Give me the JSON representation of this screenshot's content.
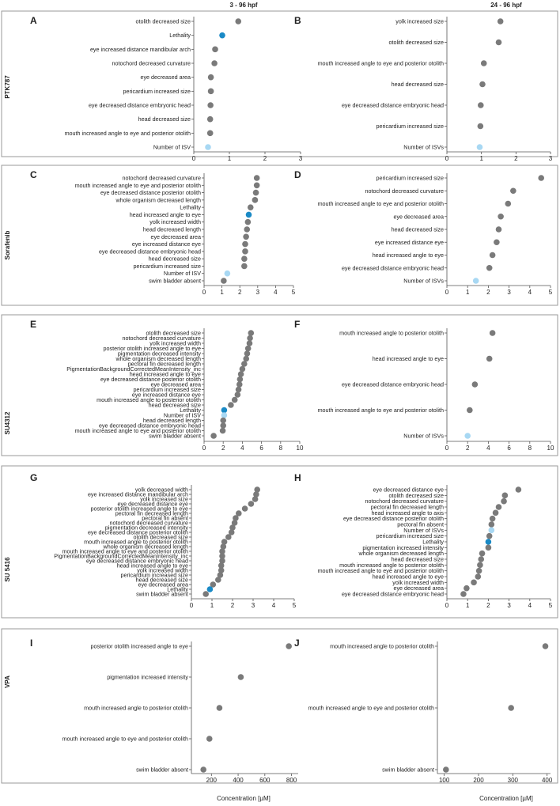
{
  "column_headers": [
    "3 - 96 hpf",
    "24 - 96 hpf"
  ],
  "x_axis_label": "Concentration [µM]",
  "colors": {
    "default": "#7a7a7a",
    "lethality": "#1a8ac6",
    "isv": "#a8d8f3",
    "frame": "#999999",
    "axis": "#555555"
  },
  "chart_data": [
    {
      "type": "scatter",
      "panel": "A",
      "row_label": "PTK787",
      "xlim": [
        0,
        3
      ],
      "ticks": [
        0,
        1,
        2,
        3
      ],
      "categories": [
        "otolith decreased size",
        "Lethality",
        "eye increased distance mandibular arch",
        "notochord decreased curvature",
        "eye decreased area",
        "pericardium increased size",
        "eye decreased distance embryonic head",
        "head decreased size",
        "mouth increased angle to eye and posterior otolith",
        "Number of ISV"
      ],
      "values": [
        1.25,
        0.8,
        0.6,
        0.58,
        0.48,
        0.48,
        0.47,
        0.46,
        0.46,
        0.4
      ],
      "kinds": [
        "default",
        "lethality",
        "default",
        "default",
        "default",
        "default",
        "default",
        "default",
        "default",
        "isv"
      ]
    },
    {
      "type": "scatter",
      "panel": "B",
      "xlim": [
        0,
        3
      ],
      "ticks": [
        0,
        1,
        2,
        3
      ],
      "categories": [
        "yolk increased size",
        "otolith decreased size",
        "mouth increased angle to eye and posterior otolith",
        "head decreased size",
        "eye decreased distance embryonic head",
        "pericardium increased size",
        "Number of ISVs"
      ],
      "values": [
        1.55,
        1.5,
        1.07,
        1.03,
        0.98,
        0.97,
        0.95
      ],
      "kinds": [
        "default",
        "default",
        "default",
        "default",
        "default",
        "default",
        "isv"
      ]
    },
    {
      "type": "scatter",
      "panel": "C",
      "row_label": "Sorafenib",
      "xlim": [
        0,
        5
      ],
      "ticks": [
        0,
        1,
        2,
        3,
        4,
        5
      ],
      "categories": [
        "notochord decreased curvature",
        "mouth increased angle to eye and posterior otolith",
        "eye decreased distance posterior otolith",
        "whole organism decreased length",
        "Lethality",
        "head increased angle to eye",
        "yolk increased width",
        "head decreased length",
        "eye decreased area",
        "eye increased distance eye",
        "eye decreased distance embryonic head",
        "head decreased size",
        "pericardium increased size",
        "Number of ISV",
        "swim bladder absent"
      ],
      "values": [
        2.95,
        2.95,
        2.9,
        2.85,
        2.6,
        2.5,
        2.45,
        2.4,
        2.35,
        2.3,
        2.3,
        2.25,
        2.25,
        1.3,
        1.1
      ],
      "kinds": [
        "default",
        "default",
        "default",
        "default",
        "default",
        "lethality",
        "default",
        "default",
        "default",
        "default",
        "default",
        "default",
        "default",
        "isv",
        "default"
      ]
    },
    {
      "type": "scatter",
      "panel": "D",
      "xlim": [
        0,
        5
      ],
      "ticks": [
        0,
        1,
        2,
        3,
        4,
        5
      ],
      "categories": [
        "pericardium increased size",
        "notochord decreased curvature",
        "mouth increased angle to eye and posterior otolith",
        "eye decreased area",
        "head decreased size",
        "eye increased distance eye",
        "head increased angle to eye",
        "eye decreased distance embryonic head",
        "Number of ISVs"
      ],
      "values": [
        4.55,
        3.2,
        2.95,
        2.6,
        2.5,
        2.4,
        2.2,
        2.05,
        1.4
      ],
      "kinds": [
        "default",
        "default",
        "default",
        "default",
        "default",
        "default",
        "default",
        "default",
        "isv"
      ]
    },
    {
      "type": "scatter",
      "panel": "E",
      "row_label": "SU4312",
      "xlim": [
        0,
        10
      ],
      "ticks": [
        0,
        2,
        4,
        6,
        8,
        10
      ],
      "categories": [
        "otolith decreased size",
        "notochord decreased curvature",
        "yolk increased width",
        "posterior otolith increased angle to eye",
        "pigmentation decreased intensity",
        "whole organism decreased length",
        "pectoral fin decreased length",
        "PigmentationBackgroundCorrectedMeanIntensity_inc",
        "head increased angle to eye",
        "eye decreased distance posterior otolith",
        "eye decreased area",
        "pericardium increased size",
        "eye increased distance eye",
        "mouth increased angle to posterior otolith",
        "head decreased size",
        "Lethality",
        "Number of ISV",
        "head decreased length",
        "eye decreased distance embryonic head",
        "mouth increased angle to eye and posterior otolith",
        "swim bladder absent"
      ],
      "values": [
        4.9,
        4.8,
        4.75,
        4.6,
        4.5,
        4.4,
        4.2,
        4.0,
        3.85,
        3.75,
        3.7,
        3.6,
        3.5,
        3.2,
        2.8,
        2.1,
        2.1,
        2.0,
        2.0,
        1.95,
        1.0
      ],
      "kinds": [
        "default",
        "default",
        "default",
        "default",
        "default",
        "default",
        "default",
        "default",
        "default",
        "default",
        "default",
        "default",
        "default",
        "default",
        "default",
        "lethality",
        "isv",
        "default",
        "default",
        "default",
        "default"
      ]
    },
    {
      "type": "scatter",
      "panel": "F",
      "xlim": [
        0,
        10
      ],
      "ticks": [
        0,
        2,
        4,
        6,
        8,
        10
      ],
      "categories": [
        "mouth increased angle to posterior otolith",
        "head increased angle to eye",
        "eye decreased distance embryonic head",
        "mouth increased angle to eye and posterior otolith",
        "Number of ISVs"
      ],
      "values": [
        4.4,
        4.1,
        2.7,
        2.2,
        2.0
      ],
      "kinds": [
        "default",
        "default",
        "default",
        "default",
        "isv"
      ]
    },
    {
      "type": "scatter",
      "panel": "G",
      "row_label": "SU 5416",
      "xlim": [
        0,
        5
      ],
      "ticks": [
        0,
        1,
        2,
        3,
        4,
        5
      ],
      "categories": [
        "yolk decreased width",
        "eye increased distance mandibular arch",
        "yolk increased size",
        "eye decreased distance eye",
        "posterior otolith increased angle to eye",
        "pectoral fin decreased length",
        "pectoral fin absent",
        "notochord decreased curvature",
        "pigmentation decreased intensity",
        "eye decreased distance posterior otolith",
        "otolith decreased size",
        "mouth increased angle to posterior otolith",
        "whole organism decreased length",
        "mouth increased angle to eye and posterior otolith",
        "PigmentationBackgroundCorrectedMeanIntensity_inc",
        "eye decreased distance embryonic head",
        "head increased angle to eye",
        "yolk increased width",
        "pericardium increased size",
        "head decreased size",
        "eye decreased area",
        "Lethality",
        "swim bladder absent"
      ],
      "values": [
        3.2,
        3.15,
        3.1,
        2.9,
        2.6,
        2.3,
        2.15,
        2.1,
        2.0,
        1.95,
        1.8,
        1.6,
        1.55,
        1.5,
        1.5,
        1.5,
        1.45,
        1.45,
        1.4,
        1.3,
        1.05,
        0.9,
        0.7
      ],
      "kinds": [
        "default",
        "default",
        "default",
        "default",
        "default",
        "default",
        "default",
        "default",
        "default",
        "default",
        "default",
        "default",
        "default",
        "default",
        "default",
        "default",
        "default",
        "default",
        "default",
        "default",
        "default",
        "lethality",
        "default"
      ]
    },
    {
      "type": "scatter",
      "panel": "H",
      "xlim": [
        0,
        5
      ],
      "ticks": [
        0,
        1,
        2,
        3,
        4,
        5
      ],
      "categories": [
        "eye decreased distance eye",
        "otolith decreased size",
        "notochord decreased curvature",
        "pectoral fin decreased length",
        "head increased angle to axis",
        "eye decreased distance posterior otolith",
        "pectoral fin absent",
        "Number of ISVs",
        "pericardium increased size",
        "Lethality",
        "pigmentation increased intensity",
        "whole organism decreased length",
        "head decreased size",
        "mouth increased angle to posterior otolith",
        "mouth increased angle to eye and posterior otolith",
        "head increased angle to eye",
        "yolk increased width",
        "eye decreased area",
        "eye decreased distance embryonic head"
      ],
      "values": [
        3.45,
        2.8,
        2.75,
        2.5,
        2.35,
        2.2,
        2.15,
        2.15,
        2.05,
        2.0,
        2.0,
        1.7,
        1.65,
        1.6,
        1.55,
        1.5,
        1.3,
        0.95,
        0.8
      ],
      "kinds": [
        "default",
        "default",
        "default",
        "default",
        "default",
        "default",
        "default",
        "isv",
        "default",
        "lethality",
        "default",
        "default",
        "default",
        "default",
        "default",
        "default",
        "default",
        "default",
        "default"
      ]
    },
    {
      "type": "scatter",
      "panel": "I",
      "row_label": "VPA",
      "xlim": [
        50,
        850
      ],
      "ticks": [
        200,
        400,
        600,
        800
      ],
      "categories": [
        "posterior otolith increased angle to eye",
        "pigmentation increased intensity",
        "mouth increased angle to posterior otolith",
        "mouth increased angle to eye and posterior otolith",
        "swim bladder absent"
      ],
      "values": [
        780,
        420,
        260,
        185,
        140
      ],
      "kinds": [
        "default",
        "default",
        "default",
        "default",
        "default"
      ]
    },
    {
      "type": "scatter",
      "panel": "J",
      "xlim": [
        80,
        410
      ],
      "ticks": [
        100,
        200,
        300,
        400
      ],
      "categories": [
        "mouth increased angle to posterior otolith",
        "mouth increased angle to eye and posterior otolith",
        "swim bladder absent"
      ],
      "values": [
        395,
        295,
        105
      ],
      "kinds": [
        "default",
        "default",
        "default"
      ]
    }
  ]
}
